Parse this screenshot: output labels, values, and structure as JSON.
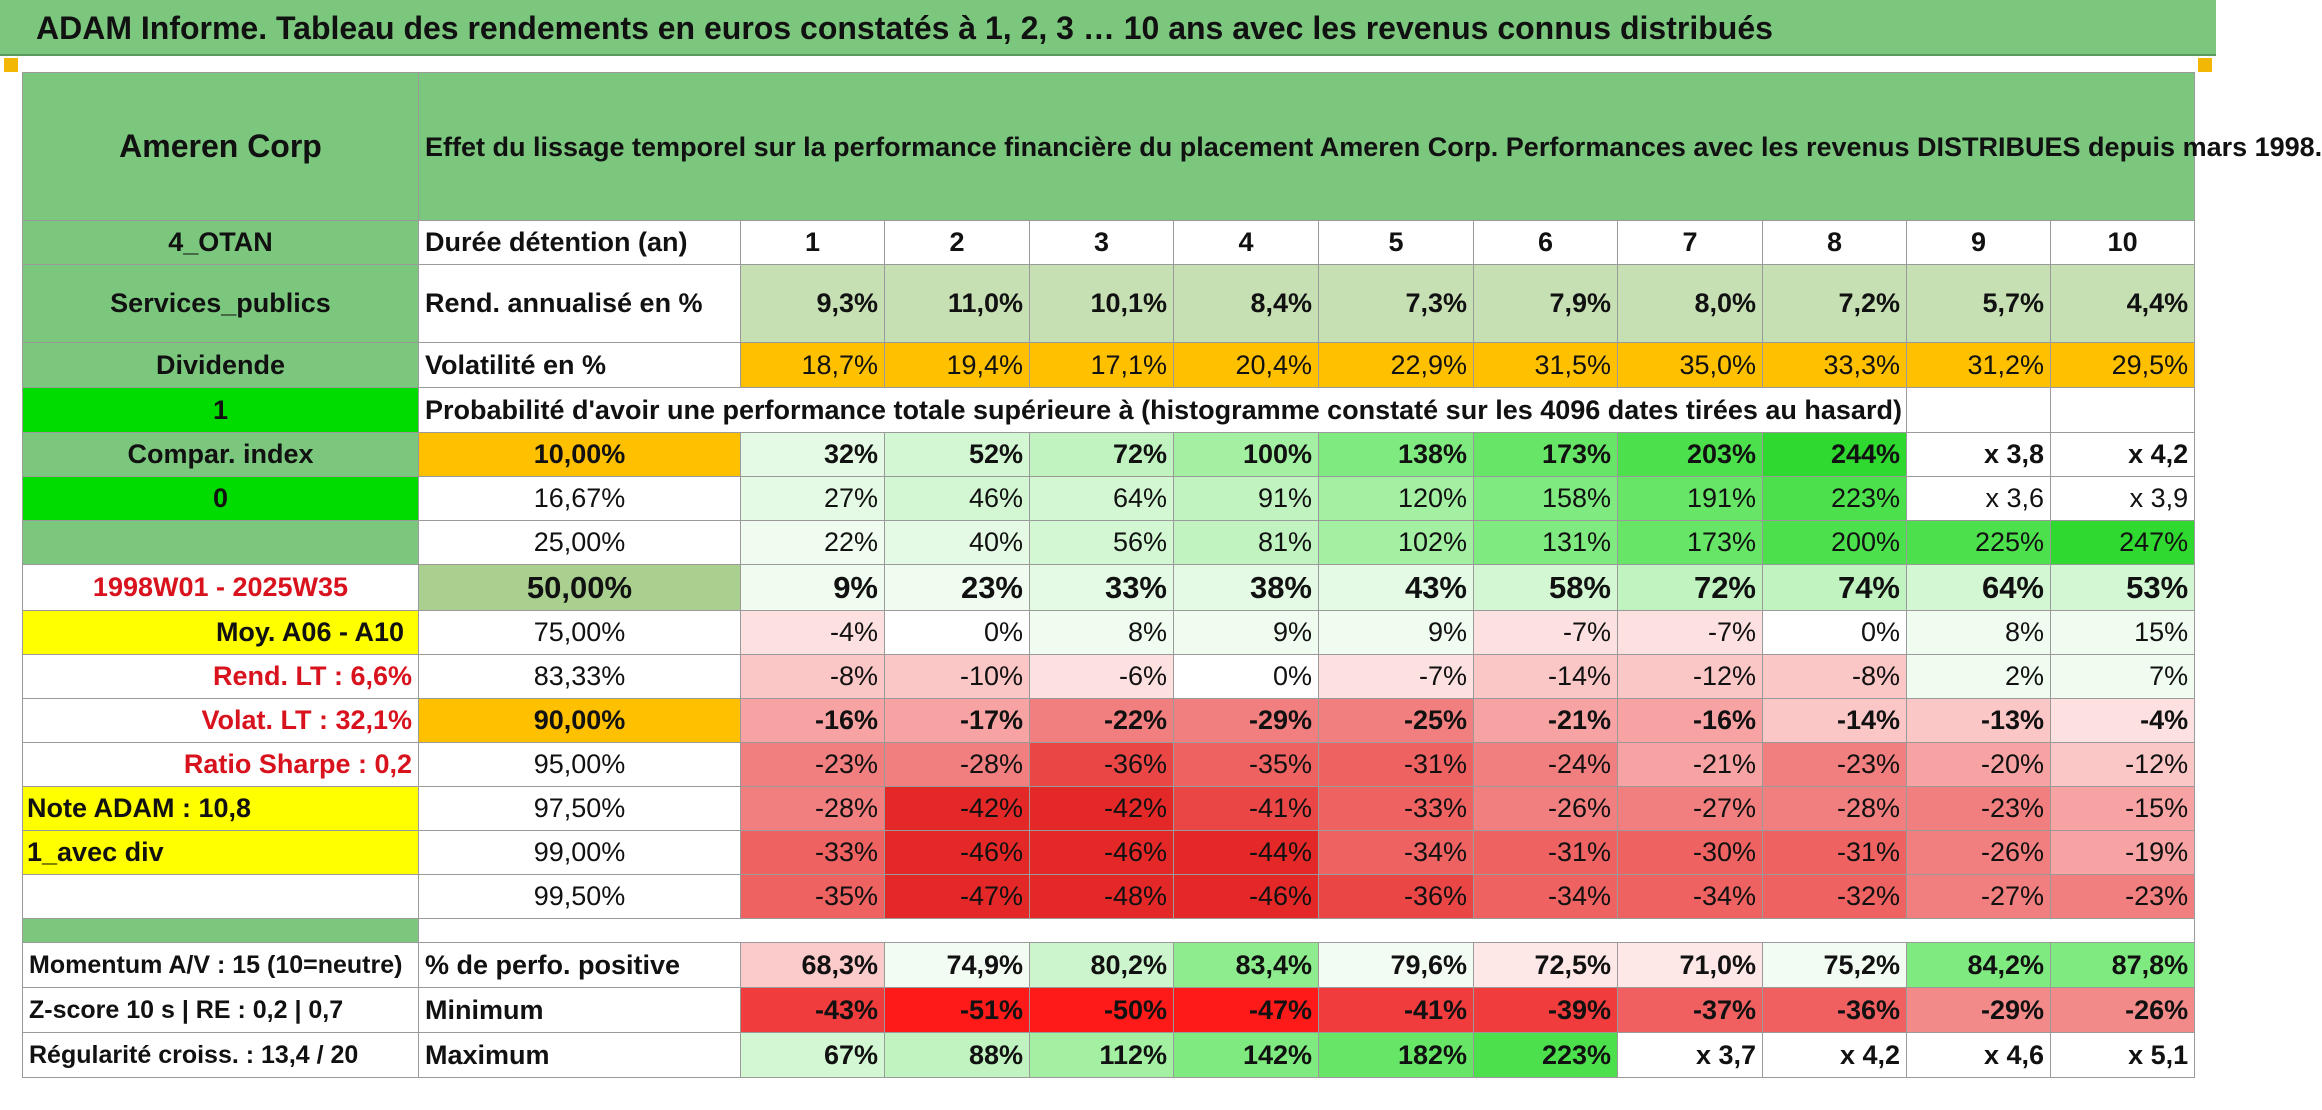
{
  "title": "ADAM Informe. Tableau des rendements en euros constatés à 1, 2, 3 … 10 ans avec les revenus connus distribués",
  "header": {
    "name": "Ameren Corp",
    "description": "Effet du lissage temporel sur la performance financière du placement Ameren Corp. Performances avec les revenus DISTRIBUES depuis mars 1998."
  },
  "left_labels": {
    "otan": "4_OTAN",
    "sector": "Services_publics",
    "dividend": "Dividende",
    "flag1": "1",
    "compar_index": "Compar. index",
    "flag0": "0",
    "period": "1998W01 - 2025W35",
    "moy": "Moy. A06 - A10",
    "rend_lt": "Rend. LT :   6,6%",
    "volat_lt": "Volat. LT :   32,1%",
    "sharpe": "Ratio Sharpe :   0,2",
    "note": "Note ADAM : 10,8",
    "avec_div": "1_avec div",
    "momentum": "Momentum A/V : 15 (10=neutre)",
    "zscore": "Z-score 10 s | RE : 0,2 | 0,7",
    "regularite": "Régularité croiss. : 13,4 / 20"
  },
  "row_labels": {
    "duration": "Durée détention (an)",
    "rend": "Rend. annualisé en %",
    "volat": "Volatilité en %",
    "probability": "Probabilité d'avoir une performance totale supérieure à (histogramme constaté sur les 4096 dates tirées au hasard)",
    "positive": "% de perfo. positive",
    "minimum": "Minimum",
    "maximum": "Maximum"
  },
  "durations": [
    "1",
    "2",
    "3",
    "4",
    "5",
    "6",
    "7",
    "8",
    "9",
    "10"
  ],
  "rend": [
    "9,3%",
    "11,0%",
    "10,1%",
    "8,4%",
    "7,3%",
    "7,9%",
    "8,0%",
    "7,2%",
    "5,7%",
    "4,4%"
  ],
  "volat": [
    "18,7%",
    "19,4%",
    "17,1%",
    "20,4%",
    "22,9%",
    "31,5%",
    "35,0%",
    "33,3%",
    "31,2%",
    "29,5%"
  ],
  "quantile_rows": [
    {
      "q": "10,00%",
      "values": [
        "32%",
        "52%",
        "72%",
        "100%",
        "138%",
        "173%",
        "203%",
        "244%",
        "x 3,8",
        "x 4,2"
      ]
    },
    {
      "q": "16,67%",
      "values": [
        "27%",
        "46%",
        "64%",
        "91%",
        "120%",
        "158%",
        "191%",
        "223%",
        "x 3,6",
        "x 3,9"
      ]
    },
    {
      "q": "25,00%",
      "values": [
        "22%",
        "40%",
        "56%",
        "81%",
        "102%",
        "131%",
        "173%",
        "200%",
        "225%",
        "247%"
      ]
    },
    {
      "q": "50,00%",
      "values": [
        "9%",
        "23%",
        "33%",
        "38%",
        "43%",
        "58%",
        "72%",
        "74%",
        "64%",
        "53%"
      ]
    },
    {
      "q": "75,00%",
      "values": [
        "-4%",
        "0%",
        "8%",
        "9%",
        "9%",
        "-7%",
        "-7%",
        "0%",
        "8%",
        "15%"
      ]
    },
    {
      "q": "83,33%",
      "values": [
        "-8%",
        "-10%",
        "-6%",
        "0%",
        "-7%",
        "-14%",
        "-12%",
        "-8%",
        "2%",
        "7%"
      ]
    },
    {
      "q": "90,00%",
      "values": [
        "-16%",
        "-17%",
        "-22%",
        "-29%",
        "-25%",
        "-21%",
        "-16%",
        "-14%",
        "-13%",
        "-4%"
      ]
    },
    {
      "q": "95,00%",
      "values": [
        "-23%",
        "-28%",
        "-36%",
        "-35%",
        "-31%",
        "-24%",
        "-21%",
        "-23%",
        "-20%",
        "-12%"
      ]
    },
    {
      "q": "97,50%",
      "values": [
        "-28%",
        "-42%",
        "-42%",
        "-41%",
        "-33%",
        "-26%",
        "-27%",
        "-28%",
        "-23%",
        "-15%"
      ]
    },
    {
      "q": "99,00%",
      "values": [
        "-33%",
        "-46%",
        "-46%",
        "-44%",
        "-34%",
        "-31%",
        "-30%",
        "-31%",
        "-26%",
        "-19%"
      ]
    },
    {
      "q": "99,50%",
      "values": [
        "-35%",
        "-47%",
        "-48%",
        "-46%",
        "-36%",
        "-34%",
        "-34%",
        "-32%",
        "-27%",
        "-23%"
      ]
    }
  ],
  "positive": [
    "68,3%",
    "74,9%",
    "80,2%",
    "83,4%",
    "79,6%",
    "72,5%",
    "71,0%",
    "75,2%",
    "84,2%",
    "87,8%"
  ],
  "minimum": [
    "-43%",
    "-51%",
    "-50%",
    "-47%",
    "-41%",
    "-39%",
    "-37%",
    "-36%",
    "-29%",
    "-26%"
  ],
  "maximum": [
    "67%",
    "88%",
    "112%",
    "142%",
    "182%",
    "223%",
    "x 3,7",
    "x 4,2",
    "x 4,6",
    "x 5,1"
  ],
  "colors": {
    "banner_green": "#7cc77e",
    "flag_green": "#00dc00",
    "highlight_yellow": "#ffff00",
    "volatility_orange": "#ffc000",
    "label_red": "#d9131e"
  }
}
